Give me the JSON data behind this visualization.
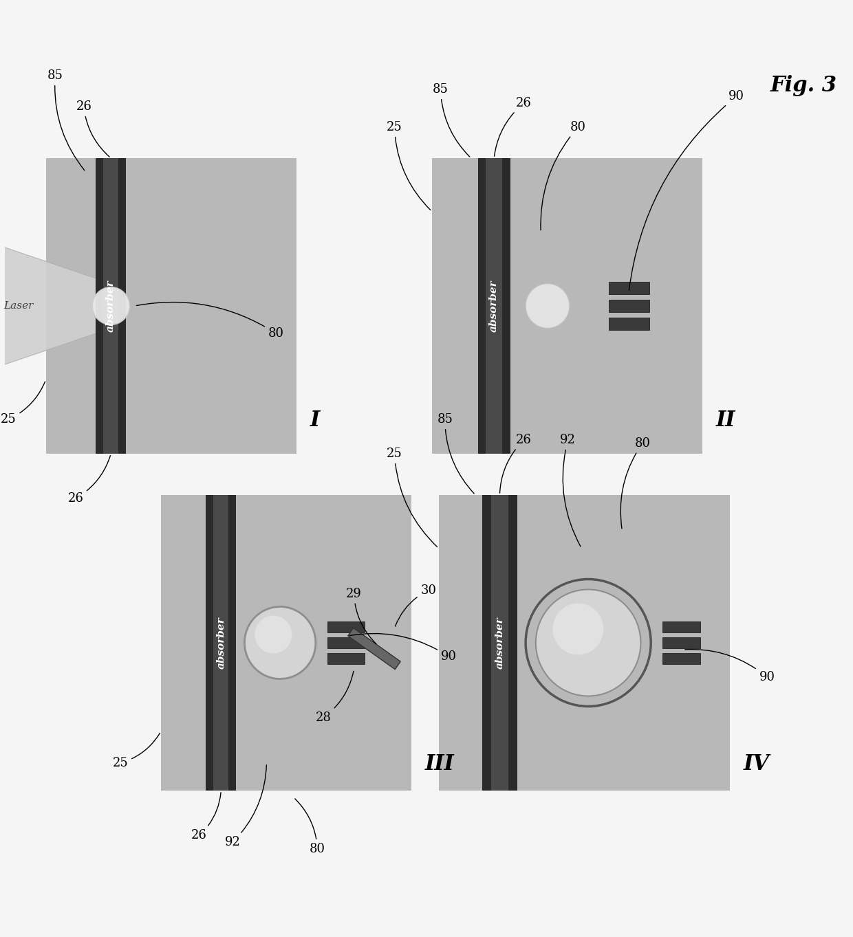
{
  "fig_label": "Fig. 3",
  "background_color": "#f5f5f5",
  "panel_bg": "#b8b8b8",
  "absorber_dark": "#2a2a2a",
  "absorber_mid": "#4a4a4a",
  "absorber_text_color": "#ffffff",
  "absorber_text": "absorber",
  "laser_text": "Laser",
  "sensor_color": "#3a3a3a",
  "bubble_fill": "#d8d8d8",
  "bubble_edge": "#888888",
  "spot_fill": "#e8e8e8",
  "laser_beam_color": "#cecece",
  "mirror_color": "#666666"
}
